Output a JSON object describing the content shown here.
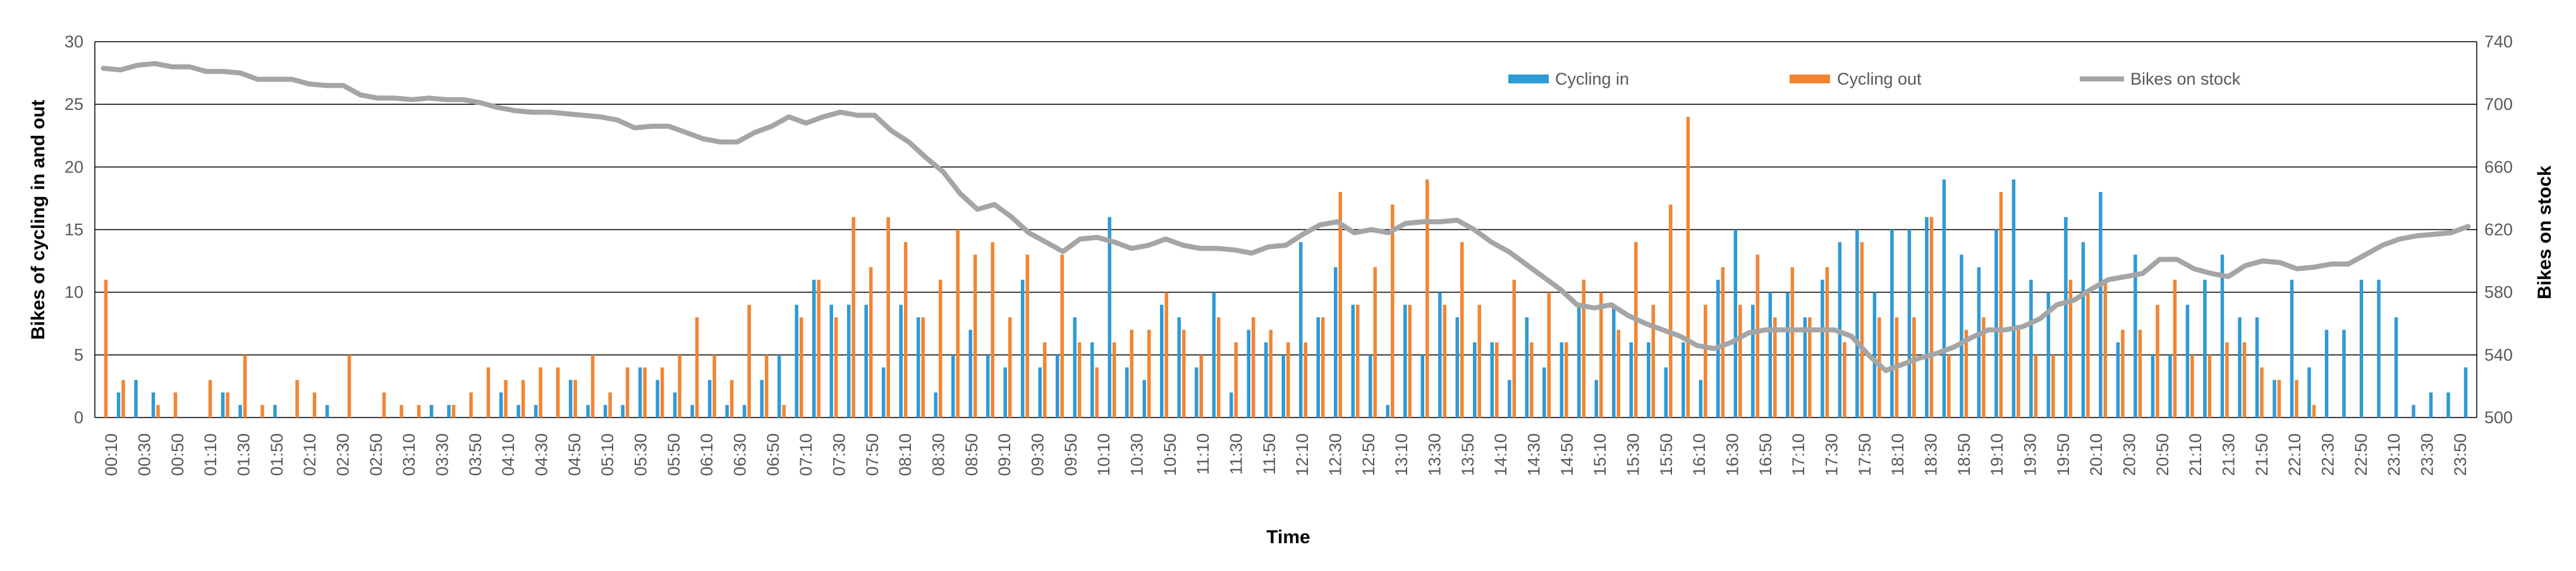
{
  "chart_data": {
    "type": "bar",
    "xlabel": "Time",
    "ylabel": "Bikes of cycling in and out",
    "y2label": "Bikes on stock",
    "ylim": [
      0,
      30
    ],
    "y2lim": [
      500,
      740
    ],
    "yticks": [
      "0",
      "5",
      "10",
      "15",
      "20",
      "25",
      "30"
    ],
    "y2ticks": [
      "500",
      "540",
      "580",
      "620",
      "660",
      "700",
      "740"
    ],
    "grid": true,
    "legend_position": "top",
    "colors": {
      "in": "#2E9AD6",
      "out": "#F28533",
      "stock": "#A5A5A5",
      "grid": "#000000"
    },
    "x_tick_labels": [
      "00:10",
      "00:30",
      "00:50",
      "01:10",
      "01:30",
      "01:50",
      "02:10",
      "02:30",
      "02:50",
      "03:10",
      "03:30",
      "03:50",
      "04:10",
      "04:30",
      "04:50",
      "05:10",
      "05:30",
      "05:50",
      "06:10",
      "06:30",
      "06:50",
      "07:10",
      "07:30",
      "07:50",
      "08:10",
      "08:30",
      "08:50",
      "09:10",
      "09:30",
      "09:50",
      "10:10",
      "10:30",
      "10:50",
      "11:10",
      "11:30",
      "11:50",
      "12:10",
      "12:30",
      "12:50",
      "13:10",
      "13:30",
      "13:50",
      "14:10",
      "14:30",
      "14:50",
      "15:10",
      "15:30",
      "15:50",
      "16:10",
      "16:30",
      "16:50",
      "17:10",
      "17:30",
      "17:50",
      "18:10",
      "18:30",
      "18:50",
      "19:10",
      "19:30",
      "19:50",
      "20:10",
      "20:30",
      "20:50",
      "21:10",
      "21:30",
      "21:50",
      "22:10",
      "22:30",
      "22:50",
      "23:10",
      "23:30",
      "23:50"
    ],
    "series": [
      {
        "name": "Cycling in",
        "values": [
          0,
          2,
          3,
          2,
          0,
          0,
          0,
          2,
          1,
          0,
          1,
          0,
          0,
          1,
          0,
          0,
          0,
          0,
          0,
          1,
          1,
          0,
          0,
          2,
          1,
          1,
          0,
          3,
          1,
          1,
          1,
          4,
          3,
          2,
          1,
          3,
          1,
          1,
          3,
          5,
          9,
          11,
          9,
          9,
          9,
          4,
          9,
          8,
          2,
          5,
          7,
          5,
          4,
          11,
          4,
          5,
          8,
          6,
          16,
          4,
          3,
          9,
          8,
          4,
          10,
          2,
          7,
          6,
          5,
          14,
          8,
          12,
          9,
          5,
          1,
          9,
          5,
          10,
          8,
          6,
          6,
          3,
          8,
          4,
          6,
          9,
          3,
          9,
          6,
          6,
          4,
          6,
          3,
          11,
          15,
          9,
          10,
          10,
          8,
          11,
          14,
          15,
          10,
          15,
          15,
          16,
          19,
          13,
          12,
          15,
          19,
          11,
          10,
          16,
          14,
          18,
          6,
          13,
          5,
          5,
          9,
          11,
          13,
          8,
          8,
          3,
          11,
          4,
          7,
          7,
          11,
          11,
          8,
          1,
          2,
          2,
          4
        ]
      },
      {
        "name": "Cycling out",
        "values": [
          11,
          3,
          0,
          1,
          2,
          0,
          3,
          2,
          5,
          1,
          0,
          3,
          2,
          0,
          5,
          0,
          2,
          1,
          1,
          0,
          1,
          2,
          4,
          3,
          3,
          4,
          4,
          3,
          5,
          2,
          4,
          4,
          4,
          5,
          8,
          5,
          3,
          9,
          5,
          1,
          8,
          11,
          8,
          16,
          12,
          16,
          14,
          8,
          11,
          15,
          13,
          14,
          8,
          13,
          6,
          13,
          6,
          4,
          6,
          7,
          7,
          10,
          7,
          5,
          8,
          6,
          8,
          7,
          6,
          6,
          8,
          18,
          9,
          12,
          17,
          9,
          19,
          9,
          14,
          9,
          6,
          11,
          6,
          10,
          6,
          11,
          10,
          7,
          14,
          9,
          17,
          24,
          9,
          12,
          9,
          13,
          8,
          12,
          8,
          12,
          6,
          14,
          8,
          8,
          8,
          16,
          5,
          7,
          8,
          18,
          7,
          5,
          5,
          11,
          10,
          11,
          7,
          7,
          9,
          11,
          5,
          5,
          6,
          6,
          4,
          3,
          3,
          1
        ]
      },
      {
        "name": "Bikes on stock",
        "values": [
          723,
          722,
          725,
          726,
          724,
          724,
          721,
          721,
          720,
          716,
          716,
          716,
          713,
          712,
          712,
          706,
          704,
          704,
          703,
          704,
          703,
          703,
          701,
          698,
          696,
          695,
          695,
          694,
          693,
          692,
          690,
          685,
          686,
          686,
          682,
          678,
          676,
          676,
          682,
          686,
          692,
          688,
          692,
          695,
          693,
          693,
          683,
          676,
          666,
          657,
          643,
          633,
          636,
          628,
          618,
          612,
          606,
          614,
          615,
          612,
          608,
          610,
          614,
          610,
          608,
          608,
          607,
          605,
          609,
          610,
          617,
          623,
          625,
          618,
          620,
          618,
          624,
          625,
          625,
          626,
          620,
          612,
          606,
          598,
          590,
          582,
          572,
          570,
          572,
          565,
          560,
          556,
          552,
          546,
          544,
          548,
          554,
          556,
          556,
          556,
          556,
          556,
          552,
          540,
          530,
          534,
          538,
          541,
          545,
          551,
          556,
          556,
          558,
          563,
          572,
          575,
          582,
          588,
          590,
          592,
          601,
          601,
          595,
          592,
          590,
          597,
          600,
          599,
          595,
          596,
          598,
          598,
          604,
          610,
          614,
          616,
          617,
          618,
          622
        ]
      }
    ]
  }
}
